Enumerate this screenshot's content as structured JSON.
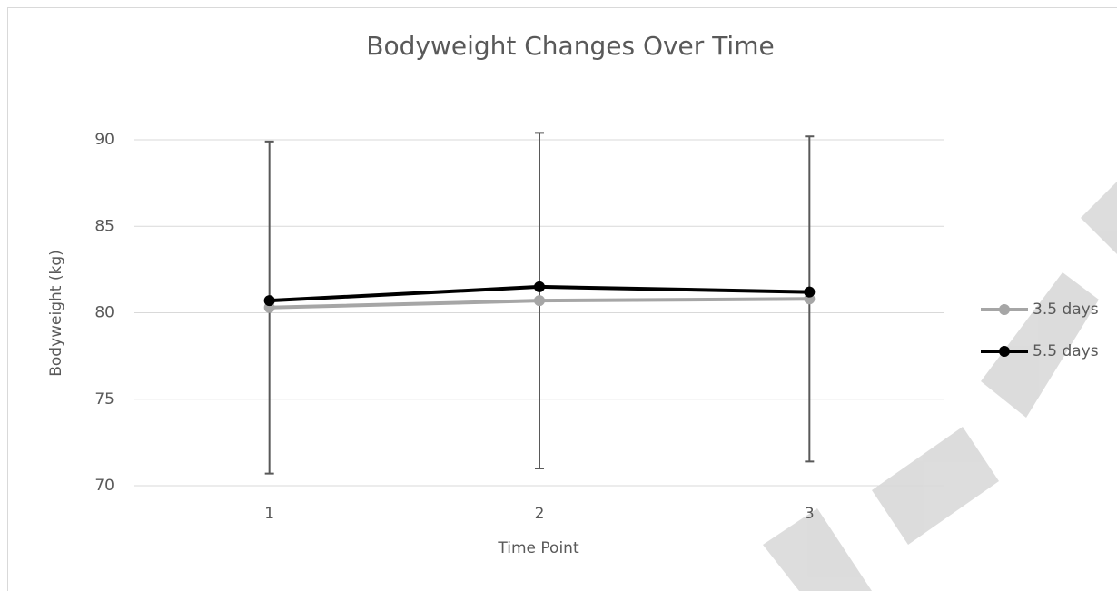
{
  "chart_data": {
    "type": "line",
    "title": "Bodyweight Changes Over Time",
    "x_label": "Time Point",
    "y_label": "Bodyweight (kg)",
    "categories": [
      "1",
      "2",
      "3"
    ],
    "series": [
      {
        "name": "3.5 days",
        "color": "#a6a6a6",
        "values": [
          80.3,
          80.7,
          80.8
        ],
        "errors": [
          9.6,
          9.7,
          9.4
        ]
      },
      {
        "name": "5.5 days",
        "color": "#000000",
        "values": [
          80.7,
          81.5,
          81.2
        ]
      }
    ],
    "ylim": [
      70,
      90
    ],
    "yticks": [
      70,
      75,
      80,
      85,
      90
    ],
    "grid": true,
    "legend": "right"
  }
}
